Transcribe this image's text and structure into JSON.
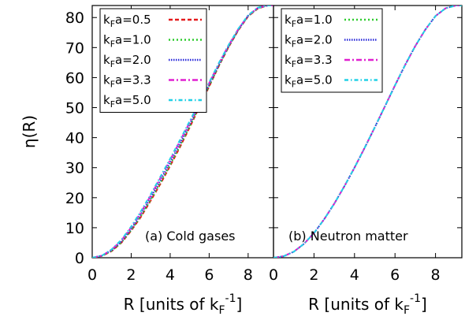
{
  "chart_data": [
    {
      "type": "line",
      "panel": "left",
      "annotation": "(a) Cold gases",
      "ylabel_main": "η",
      "ylabel_suffix": "(R)",
      "xlabel_main": "R [units of k",
      "xlabel_sub": "F",
      "xlabel_sup": "-1",
      "xlabel_end": "]",
      "xlim": [
        0,
        9.3
      ],
      "ylim": [
        0,
        84
      ],
      "xticks": [
        "0",
        "2",
        "4",
        "6",
        "8"
      ],
      "yticks": [
        "0",
        "10",
        "20",
        "30",
        "40",
        "50",
        "60",
        "70",
        "80"
      ],
      "legend_position": "top-left",
      "x": [
        0,
        0.5,
        1,
        1.5,
        2,
        2.5,
        3,
        3.5,
        4,
        4.5,
        5,
        5.5,
        6,
        6.5,
        7,
        7.5,
        8,
        8.5,
        9,
        9.3
      ],
      "series": [
        {
          "name": "k_Fa=0.5",
          "label_pre": "k",
          "label_sub": "F",
          "label_post": "a=0.5",
          "color": "#e41a1c",
          "dash": "5,3",
          "values": [
            0,
            0.6,
            2.2,
            5.0,
            9.0,
            13.6,
            19.0,
            24.6,
            30.6,
            36.8,
            43.4,
            50.2,
            57.0,
            63.9,
            70.2,
            75.8,
            80.4,
            83.0,
            84.0,
            84.0
          ]
        },
        {
          "name": "k_Fa=1.0",
          "label_pre": "k",
          "label_sub": "F",
          "label_post": "a=1.0",
          "color": "#2ecc2e",
          "dash": "2,3",
          "values": [
            0,
            0.6,
            2.3,
            5.1,
            9.2,
            13.9,
            19.3,
            25.0,
            31.0,
            37.2,
            43.7,
            50.4,
            57.2,
            64.0,
            70.3,
            75.9,
            80.5,
            83.1,
            84.0,
            84.0
          ]
        },
        {
          "name": "k_Fa=2.0",
          "label_pre": "k",
          "label_sub": "F",
          "label_post": "a=2.0",
          "color": "#2b2bd9",
          "dash": "1.5,1.5",
          "values": [
            0,
            0.7,
            2.5,
            5.4,
            9.6,
            14.5,
            20.0,
            25.8,
            31.8,
            38.0,
            44.4,
            51.0,
            57.7,
            64.3,
            70.5,
            76.0,
            80.6,
            83.2,
            84.0,
            84.0
          ]
        },
        {
          "name": "k_Fa=3.3",
          "label_pre": "k",
          "label_sub": "F",
          "label_post": "a=3.3",
          "color": "#e020d0",
          "dash": "7,3,2,3",
          "values": [
            0,
            0.7,
            2.7,
            5.8,
            10.1,
            15.1,
            20.7,
            26.6,
            32.6,
            38.8,
            45.1,
            51.6,
            58.2,
            64.7,
            70.8,
            76.2,
            80.7,
            83.3,
            84.0,
            84.0
          ]
        },
        {
          "name": "k_Fa=5.0",
          "label_pre": "k",
          "label_sub": "F",
          "label_post": "a=5.0",
          "color": "#22d0e6",
          "dash": "5,3,1.5,3",
          "values": [
            0,
            0.7,
            2.8,
            6.0,
            10.4,
            15.5,
            21.1,
            27.0,
            33.0,
            39.2,
            45.5,
            51.9,
            58.4,
            64.9,
            70.9,
            76.3,
            80.8,
            83.3,
            84.0,
            84.0
          ]
        }
      ]
    },
    {
      "type": "line",
      "panel": "right",
      "annotation": "(b) Neutron matter",
      "xlabel_main": "R [units of k",
      "xlabel_sub": "F",
      "xlabel_sup": "-1",
      "xlabel_end": "]",
      "xlim": [
        0,
        9.3
      ],
      "ylim": [
        0,
        84
      ],
      "xticks": [
        "0",
        "2",
        "4",
        "6",
        "8"
      ],
      "legend_position": "top-left",
      "x": [
        0,
        0.5,
        1,
        1.5,
        2,
        2.5,
        3,
        3.5,
        4,
        4.5,
        5,
        5.5,
        6,
        6.5,
        7,
        7.5,
        8,
        8.5,
        9,
        9.3
      ],
      "series": [
        {
          "name": "k_Fa=1.0",
          "label_pre": "k",
          "label_sub": "F",
          "label_post": "a=1.0",
          "color": "#2ecc2e",
          "dash": "2,3",
          "values": [
            0,
            0.5,
            2.0,
            4.6,
            8.2,
            12.8,
            18.0,
            23.8,
            30.0,
            36.6,
            43.4,
            50.4,
            57.4,
            64.2,
            70.5,
            76.0,
            80.5,
            83.1,
            84.0,
            84.0
          ]
        },
        {
          "name": "k_Fa=2.0",
          "label_pre": "k",
          "label_sub": "F",
          "label_post": "a=2.0",
          "color": "#2b2bd9",
          "dash": "1.5,1.5",
          "values": [
            0,
            0.5,
            2.0,
            4.6,
            8.2,
            12.8,
            18.0,
            23.8,
            30.0,
            36.6,
            43.4,
            50.4,
            57.4,
            64.2,
            70.5,
            76.0,
            80.5,
            83.1,
            84.0,
            84.0
          ]
        },
        {
          "name": "k_Fa=3.3",
          "label_pre": "k",
          "label_sub": "F",
          "label_post": "a=3.3",
          "color": "#e020d0",
          "dash": "7,3,2,3",
          "values": [
            0,
            0.5,
            2.0,
            4.6,
            8.2,
            12.8,
            18.0,
            23.8,
            30.0,
            36.6,
            43.4,
            50.4,
            57.4,
            64.2,
            70.5,
            76.0,
            80.5,
            83.1,
            84.0,
            84.0
          ]
        },
        {
          "name": "k_Fa=5.0",
          "label_pre": "k",
          "label_sub": "F",
          "label_post": "a=5.0",
          "color": "#22d0e6",
          "dash": "5,3,1.5,3",
          "values": [
            0,
            0.5,
            2.0,
            4.6,
            8.2,
            12.8,
            18.0,
            23.8,
            30.0,
            36.6,
            43.4,
            50.4,
            57.4,
            64.2,
            70.5,
            76.0,
            80.5,
            83.1,
            84.0,
            84.0
          ]
        }
      ]
    }
  ]
}
